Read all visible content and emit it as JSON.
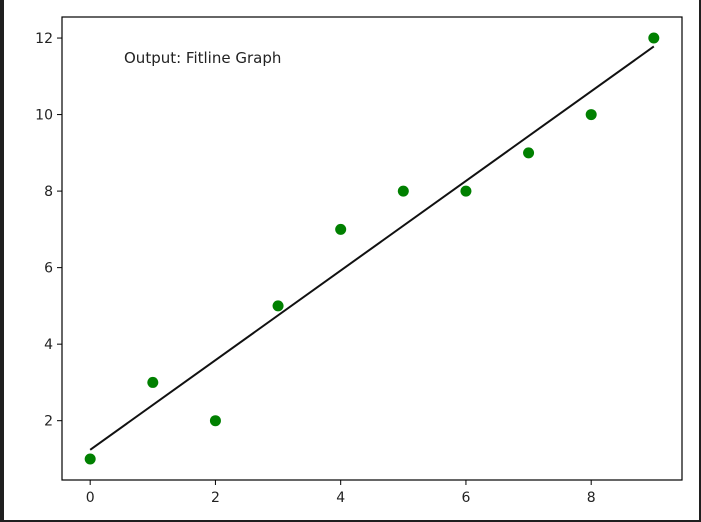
{
  "chart_data": {
    "type": "scatter",
    "title": "",
    "xlabel": "",
    "ylabel": "",
    "annotation": "Output: Fitline Graph",
    "x": [
      0,
      1,
      2,
      3,
      4,
      5,
      6,
      7,
      8,
      9
    ],
    "y": [
      1,
      3,
      2,
      5,
      7,
      8,
      8,
      9,
      10,
      12
    ],
    "series": [
      {
        "values": [
          1,
          3,
          2,
          5,
          7,
          8,
          8,
          9,
          10,
          12
        ]
      }
    ],
    "fit_line": {
      "x": [
        0,
        9
      ],
      "y": [
        1.24,
        11.78
      ]
    },
    "xlim": [
      -0.45,
      9.45
    ],
    "ylim": [
      0.45,
      12.55
    ],
    "xticks": [
      0,
      2,
      4,
      6,
      8
    ],
    "yticks": [
      2,
      4,
      6,
      8,
      10,
      12
    ],
    "xtick_labels": [
      "0",
      "2",
      "4",
      "6",
      "8"
    ],
    "ytick_labels": [
      "2",
      "4",
      "6",
      "8",
      "10",
      "12"
    ],
    "grid": false,
    "colors": {
      "points": "#008000",
      "fit_line": "#111111",
      "axes": "#000000"
    }
  }
}
